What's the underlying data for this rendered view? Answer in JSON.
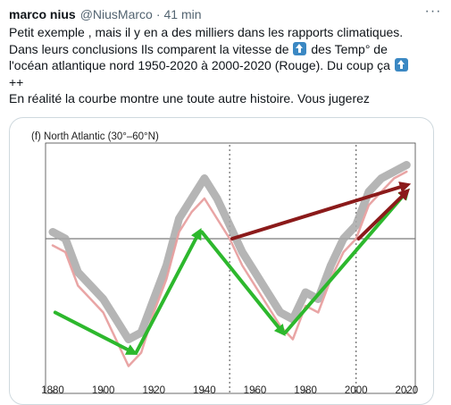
{
  "tweet": {
    "author_name": "marco nius",
    "author_handle": "@NiusMarco",
    "separator": "·",
    "time": "41 min",
    "more_label": "···",
    "text_lines": [
      "Petit exemple , mais il y en a des milliers dans les rapports climatiques.",
      "Dans leurs conclusions Ils comparent la vitesse de",
      "des Temp° de",
      "l'océan atlantique nord 1950-2020 à 2000-2020 (Rouge). Du coup ça",
      "++",
      "En réalité la courbe montre une toute autre histoire. Vous jugerez"
    ],
    "emoji_name": "up-arrow-emoji"
  },
  "chart_data": {
    "type": "line",
    "title": "(f) North Atlantic (30°–60°N)",
    "xlabel": "",
    "ylabel": "",
    "xlim": [
      1880,
      2022
    ],
    "x_ticks": [
      1880,
      1900,
      1920,
      1940,
      1960,
      1980,
      2000,
      2020
    ],
    "vertical_dashed_lines": [
      1950,
      2000
    ],
    "horizontal_reference": "zero-line",
    "grid": false,
    "series": [
      {
        "color": "#a8a8a8",
        "x": [
          1880,
          1885,
          1890,
          1895,
          1900,
          1905,
          1910,
          1915,
          1920,
          1925,
          1930,
          1935,
          1940,
          1945,
          1950,
          1955,
          1960,
          1965,
          1970,
          1975,
          1980,
          1985,
          1990,
          1995,
          2000,
          2005,
          2010,
          2015,
          2020
        ],
        "y": [
          0.05,
          0.0,
          -0.25,
          -0.35,
          -0.45,
          -0.6,
          -0.75,
          -0.7,
          -0.45,
          -0.2,
          0.15,
          0.3,
          0.45,
          0.3,
          0.1,
          -0.1,
          -0.25,
          -0.4,
          -0.55,
          -0.6,
          -0.4,
          -0.45,
          -0.2,
          0.0,
          0.1,
          0.35,
          0.45,
          0.5,
          0.55
        ]
      },
      {
        "color": "#e8a0a0",
        "x": [
          1880,
          1885,
          1890,
          1895,
          1900,
          1905,
          1910,
          1915,
          1920,
          1925,
          1930,
          1935,
          1940,
          1945,
          1950,
          1955,
          1960,
          1965,
          1970,
          1975,
          1980,
          1985,
          1990,
          1995,
          2000,
          2005,
          2010,
          2015,
          2020
        ],
        "y": [
          -0.05,
          -0.1,
          -0.35,
          -0.45,
          -0.55,
          -0.75,
          -0.95,
          -0.85,
          -0.55,
          -0.3,
          0.05,
          0.2,
          0.3,
          0.15,
          0.0,
          -0.2,
          -0.35,
          -0.5,
          -0.65,
          -0.75,
          -0.5,
          -0.55,
          -0.3,
          -0.1,
          0.0,
          0.25,
          0.35,
          0.45,
          0.5
        ]
      }
    ],
    "annotations": [
      {
        "type": "arrow",
        "color": "#2db82d",
        "from": [
          1881,
          -0.55
        ],
        "to": [
          1912,
          -0.85
        ]
      },
      {
        "type": "arrow",
        "color": "#2db82d",
        "from": [
          1913,
          -0.85
        ],
        "to": [
          1938,
          0.05
        ]
      },
      {
        "type": "arrow",
        "color": "#2db82d",
        "from": [
          1939,
          0.05
        ],
        "to": [
          1971,
          -0.7
        ]
      },
      {
        "type": "arrow",
        "color": "#2db82d",
        "from": [
          1972,
          -0.7
        ],
        "to": [
          2020,
          0.35
        ]
      },
      {
        "type": "arrow",
        "color": "#8b1a1a",
        "from": [
          1951,
          0.0
        ],
        "to": [
          2020,
          0.4
        ]
      },
      {
        "type": "arrow",
        "color": "#8b1a1a",
        "from": [
          2001,
          0.0
        ],
        "to": [
          2020,
          0.35
        ]
      }
    ]
  },
  "colors": {
    "text": "#0f1419",
    "secondary_text": "#536471",
    "border": "#cfd9de",
    "emoji_blue": "#3b88c3"
  }
}
